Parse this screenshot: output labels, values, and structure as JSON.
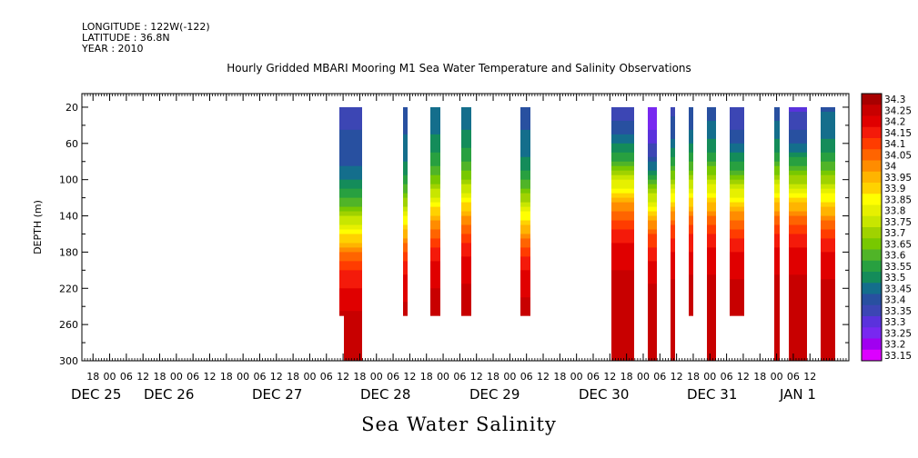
{
  "header": {
    "longitude": "LONGITUDE : 122W(-122)",
    "latitude": "LATITUDE : 36.8N",
    "year": "YEAR : 2010"
  },
  "chart_data": {
    "type": "heatmap",
    "title": "Hourly Gridded MBARI Mooring M1 Sea Water Temperature and Salinity Observations",
    "bottom_title": "Sea Water Salinity",
    "ylabel": "DEPTH (m)",
    "ylim": [
      300,
      5
    ],
    "y_ticks": [
      20,
      60,
      100,
      140,
      180,
      220,
      260,
      300
    ],
    "x_range_hours": [
      -10,
      266
    ],
    "x_hour_ticks": [
      {
        "h": -6,
        "label": "18"
      },
      {
        "h": 0,
        "label": "00"
      },
      {
        "h": 6,
        "label": "06"
      },
      {
        "h": 12,
        "label": "12"
      },
      {
        "h": 18,
        "label": "18"
      },
      {
        "h": 24,
        "label": "00"
      },
      {
        "h": 30,
        "label": "06"
      },
      {
        "h": 36,
        "label": "12"
      },
      {
        "h": 42,
        "label": "18"
      },
      {
        "h": 48,
        "label": "00"
      },
      {
        "h": 54,
        "label": "06"
      },
      {
        "h": 60,
        "label": "12"
      },
      {
        "h": 66,
        "label": "18"
      },
      {
        "h": 72,
        "label": "00"
      },
      {
        "h": 78,
        "label": "06"
      },
      {
        "h": 84,
        "label": "12"
      },
      {
        "h": 90,
        "label": "18"
      },
      {
        "h": 96,
        "label": "00"
      },
      {
        "h": 102,
        "label": "06"
      },
      {
        "h": 108,
        "label": "12"
      },
      {
        "h": 114,
        "label": "18"
      },
      {
        "h": 120,
        "label": "00"
      },
      {
        "h": 126,
        "label": "06"
      },
      {
        "h": 132,
        "label": "12"
      },
      {
        "h": 138,
        "label": "18"
      },
      {
        "h": 144,
        "label": "00"
      },
      {
        "h": 150,
        "label": "06"
      },
      {
        "h": 156,
        "label": "12"
      },
      {
        "h": 162,
        "label": "18"
      },
      {
        "h": 168,
        "label": "00"
      },
      {
        "h": 174,
        "label": "06"
      },
      {
        "h": 180,
        "label": "12"
      },
      {
        "h": 186,
        "label": "18"
      },
      {
        "h": 192,
        "label": "00"
      },
      {
        "h": 198,
        "label": "06"
      },
      {
        "h": 204,
        "label": "12"
      },
      {
        "h": 210,
        "label": "18"
      },
      {
        "h": 216,
        "label": "00"
      },
      {
        "h": 222,
        "label": "06"
      },
      {
        "h": 228,
        "label": "12"
      },
      {
        "h": 234,
        "label": "18"
      },
      {
        "h": 240,
        "label": "00"
      },
      {
        "h": 246,
        "label": "06"
      },
      {
        "h": 252,
        "label": "12"
      }
    ],
    "date_labels": [
      {
        "h": -10,
        "label": "DEC 25"
      },
      {
        "h": 18,
        "label": "DEC 26"
      },
      {
        "h": 72,
        "label": "DEC 27"
      },
      {
        "h": 132,
        "label": "DEC 28"
      },
      {
        "h": 192,
        "label": "DEC 29"
      },
      {
        "h": 252,
        "label": "DEC 30"
      },
      {
        "h": 312,
        "label": "DEC 31"
      },
      {
        "h": 360,
        "label": "JAN  1"
      }
    ],
    "colorbar": {
      "levels": [
        "34.3",
        "34.25",
        "34.2",
        "34.15",
        "34.1",
        "34.05",
        "34",
        "33.95",
        "33.9",
        "33.85",
        "33.8",
        "33.75",
        "33.7",
        "33.65",
        "33.6",
        "33.55",
        "33.5",
        "33.45",
        "33.4",
        "33.35",
        "33.3",
        "33.25",
        "33.2",
        "33.15"
      ],
      "colors": [
        "#a80000",
        "#c80000",
        "#e00000",
        "#f41a0a",
        "#ff3c00",
        "#ff6400",
        "#ff8c00",
        "#ffb400",
        "#ffd200",
        "#ffff00",
        "#e6f000",
        "#c8e600",
        "#a0d200",
        "#78c800",
        "#50b428",
        "#28a040",
        "#148c5a",
        "#146e8c",
        "#2850a0",
        "#3c46b4",
        "#5a32dc",
        "#7828f0",
        "#a000f0",
        "#dc00ff"
      ]
    }
  }
}
